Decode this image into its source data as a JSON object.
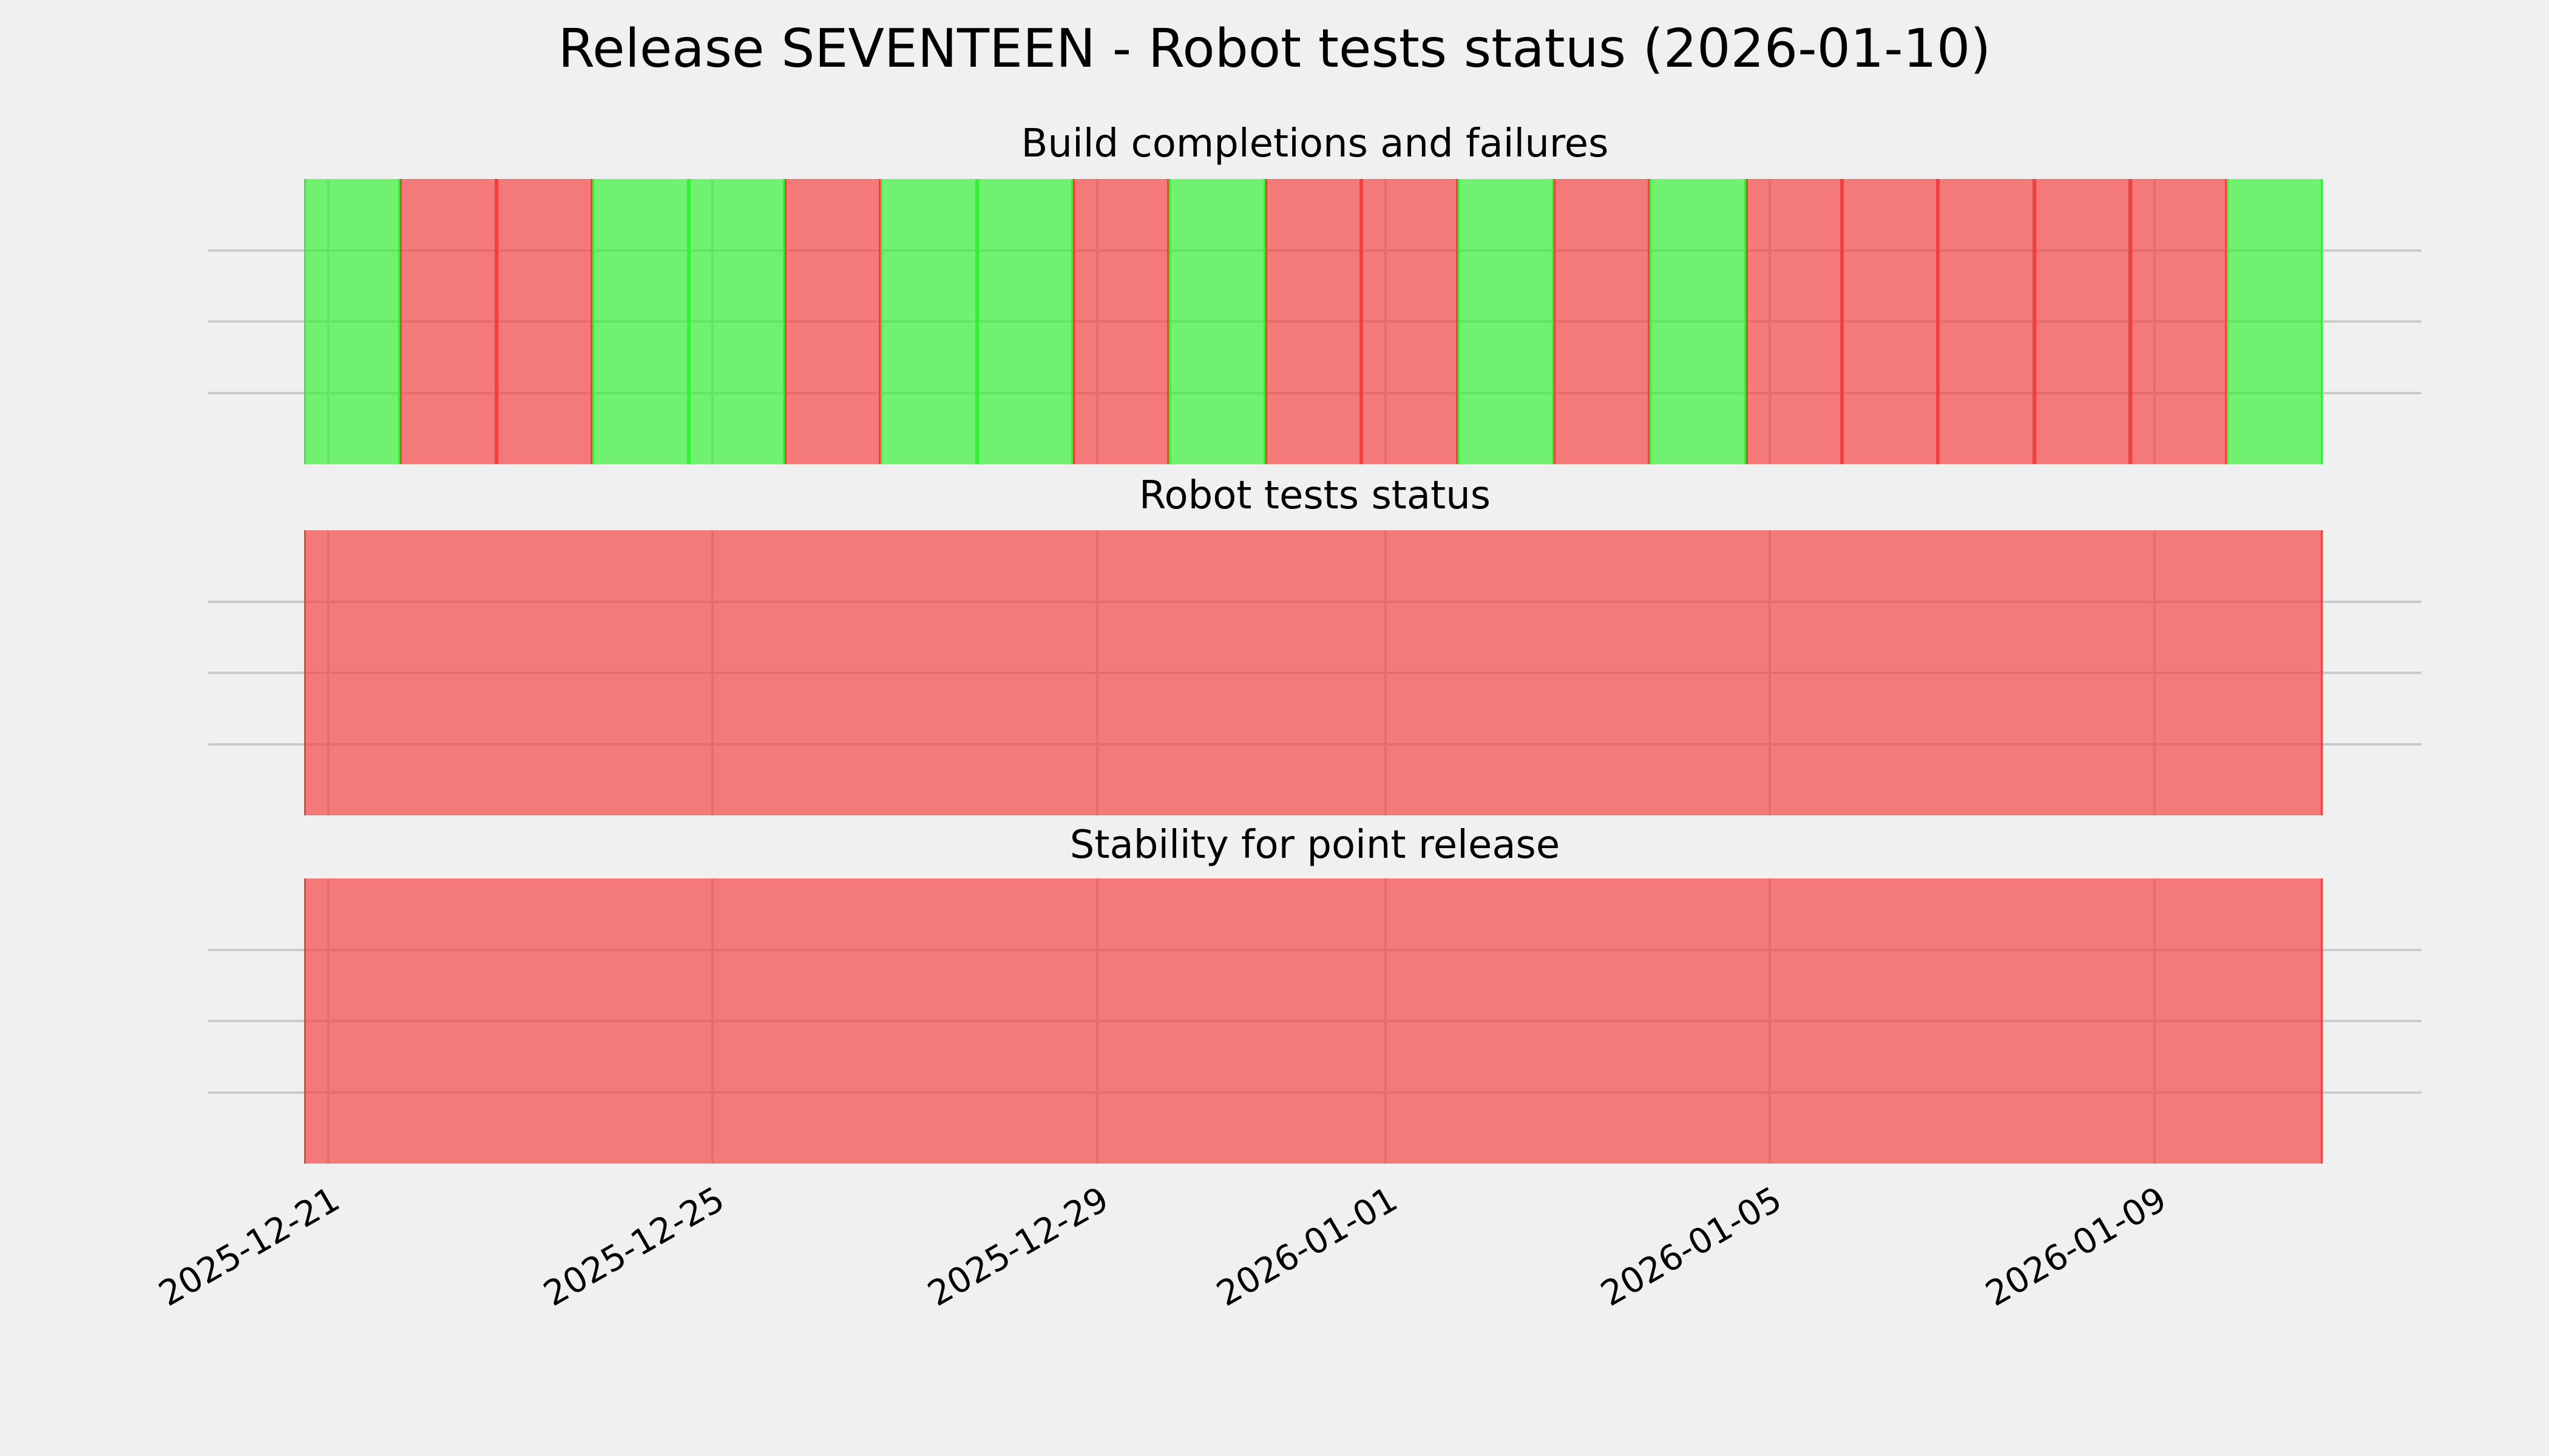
{
  "suptitle": "Release SEVENTEEN - Robot tests status (2026-01-10)",
  "colors": {
    "pass": "#2df22d",
    "fail": "#f63b3b",
    "grid": "#cbcbcb",
    "background": "#f0f0f0",
    "text": "#000000"
  },
  "x_axis": {
    "dates": [
      "2025-12-21",
      "2025-12-22",
      "2025-12-23",
      "2025-12-24",
      "2025-12-25",
      "2025-12-26",
      "2025-12-27",
      "2025-12-28",
      "2025-12-29",
      "2025-12-30",
      "2025-12-31",
      "2026-01-01",
      "2026-01-02",
      "2026-01-03",
      "2026-01-04",
      "2026-01-05",
      "2026-01-06",
      "2026-01-07",
      "2026-01-08",
      "2026-01-09",
      "2026-01-10"
    ],
    "tick_labels": [
      "2025-12-21",
      "2025-12-25",
      "2025-12-29",
      "2026-01-01",
      "2026-01-05",
      "2026-01-09"
    ],
    "tick_day_indices": [
      0,
      4,
      8,
      11,
      15,
      19
    ],
    "tick_label_rotation_deg": 30,
    "gridlines_per_band": 3
  },
  "chart_data": [
    {
      "type": "heatmap",
      "subtype": "status-timeline",
      "title": "Build completions and failures",
      "statuses": [
        "pass",
        "fail",
        "fail",
        "pass",
        "pass",
        "fail",
        "pass",
        "pass",
        "fail",
        "pass",
        "fail",
        "fail",
        "pass",
        "fail",
        "pass",
        "fail",
        "fail",
        "fail",
        "fail",
        "fail",
        "pass"
      ]
    },
    {
      "type": "heatmap",
      "subtype": "status-timeline",
      "title": "Robot tests status",
      "statuses": [
        "fail",
        "fail",
        "fail",
        "fail",
        "fail",
        "fail",
        "fail",
        "fail",
        "fail",
        "fail",
        "fail",
        "fail",
        "fail",
        "fail",
        "fail",
        "fail",
        "fail",
        "fail",
        "fail",
        "fail",
        "fail"
      ]
    },
    {
      "type": "heatmap",
      "subtype": "status-timeline",
      "title": "Stability for point release",
      "statuses": [
        "fail",
        "fail",
        "fail",
        "fail",
        "fail",
        "fail",
        "fail",
        "fail",
        "fail",
        "fail",
        "fail",
        "fail",
        "fail",
        "fail",
        "fail",
        "fail",
        "fail",
        "fail",
        "fail",
        "fail",
        "fail"
      ]
    }
  ]
}
